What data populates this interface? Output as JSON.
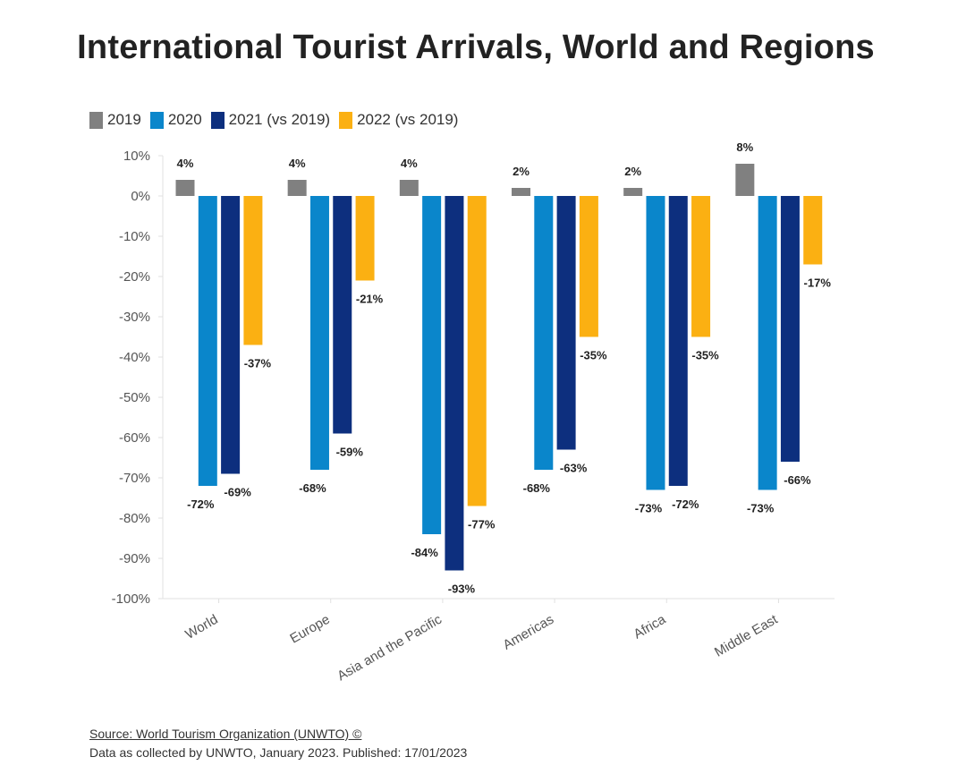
{
  "title": "International Tourist Arrivals, World and Regions",
  "source_label": "Source: World Tourism Organization (UNWTO) ©",
  "note": "Data as collected by UNWTO, January 2023. Published: 17/01/2023",
  "colors": {
    "series": [
      "#808080",
      "#0a86cb",
      "#0d2f7e",
      "#fbb012"
    ],
    "axis_text": "#555555",
    "label_text": "#222222",
    "grid": "#e0e0e0"
  },
  "chart_data": {
    "type": "bar",
    "categories": [
      "World",
      "Europe",
      "Asia and the Pacific",
      "Americas",
      "Africa",
      "Middle East"
    ],
    "series": [
      {
        "name": "2019",
        "values": [
          4,
          4,
          4,
          2,
          2,
          8
        ],
        "labels": [
          "4%",
          "4%",
          "4%",
          "2%",
          "2%",
          "8%"
        ]
      },
      {
        "name": "2020",
        "values": [
          -72,
          -68,
          -84,
          -68,
          -73,
          -73
        ],
        "labels": [
          "-72%",
          "-68%",
          "-84%",
          "-68%",
          "-73%",
          "-73%"
        ]
      },
      {
        "name": "2021 (vs 2019)",
        "values": [
          -69,
          -59,
          -93,
          -63,
          -72,
          -66
        ],
        "labels": [
          "-69%",
          "-59%",
          "-93%",
          "-63%",
          "-72%",
          "-66%"
        ]
      },
      {
        "name": "2022 (vs 2019)",
        "values": [
          -37,
          -21,
          -77,
          -35,
          -35,
          -17
        ],
        "labels": [
          "-37%",
          "-21%",
          "-77%",
          "-35%",
          "-35%",
          "-17%"
        ]
      }
    ],
    "ylim": [
      -100,
      10
    ],
    "yticks": [
      10,
      0,
      -10,
      -20,
      -30,
      -40,
      -50,
      -60,
      -70,
      -80,
      -90,
      -100
    ],
    "ytick_labels": [
      "10%",
      "0%",
      "-10%",
      "-20%",
      "-30%",
      "-40%",
      "-50%",
      "-60%",
      "-70%",
      "-80%",
      "-90%",
      "-100%"
    ],
    "xlabel": "",
    "ylabel": "",
    "grid": false,
    "legend": "top-left"
  }
}
